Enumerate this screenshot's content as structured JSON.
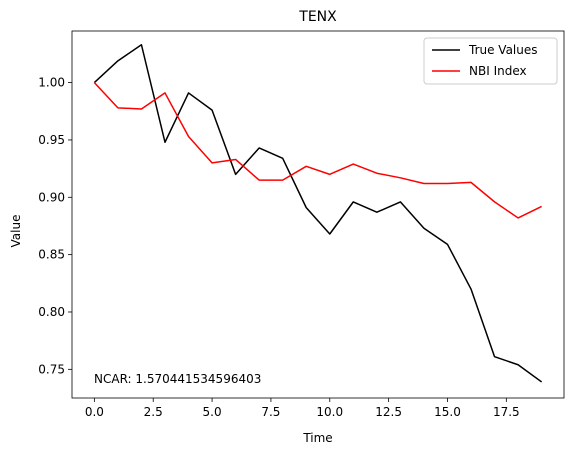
{
  "chart_data": {
    "type": "line",
    "title": "TENX",
    "xlabel": "Time",
    "ylabel": "Value",
    "xlim": [
      -0.95,
      19.95
    ],
    "ylim": [
      0.725,
      1.045
    ],
    "xticks": [
      0.0,
      2.5,
      5.0,
      7.5,
      10.0,
      12.5,
      15.0,
      17.5
    ],
    "xtick_labels": [
      "0.0",
      "2.5",
      "5.0",
      "7.5",
      "10.0",
      "12.5",
      "15.0",
      "17.5"
    ],
    "yticks": [
      0.75,
      0.8,
      0.85,
      0.9,
      0.95,
      1.0
    ],
    "ytick_labels": [
      "0.75",
      "0.80",
      "0.85",
      "0.90",
      "0.95",
      "1.00"
    ],
    "grid": false,
    "legend_position": "top-right",
    "x": [
      0,
      1,
      2,
      3,
      4,
      5,
      6,
      7,
      8,
      9,
      10,
      11,
      12,
      13,
      14,
      15,
      16,
      17,
      18,
      19
    ],
    "series": [
      {
        "name": "True Values",
        "color": "#000000",
        "values": [
          1.0,
          1.019,
          1.033,
          0.948,
          0.991,
          0.976,
          0.92,
          0.943,
          0.934,
          0.891,
          0.868,
          0.896,
          0.887,
          0.896,
          0.873,
          0.859,
          0.82,
          0.761,
          0.754,
          0.739
        ]
      },
      {
        "name": "NBI Index",
        "color": "#ff0000",
        "values": [
          1.0,
          0.978,
          0.977,
          0.991,
          0.953,
          0.93,
          0.933,
          0.915,
          0.915,
          0.927,
          0.92,
          0.929,
          0.921,
          0.917,
          0.912,
          0.912,
          0.913,
          0.896,
          0.882,
          0.892
        ]
      }
    ],
    "annotation": "NCAR: 1.570441534596403"
  }
}
